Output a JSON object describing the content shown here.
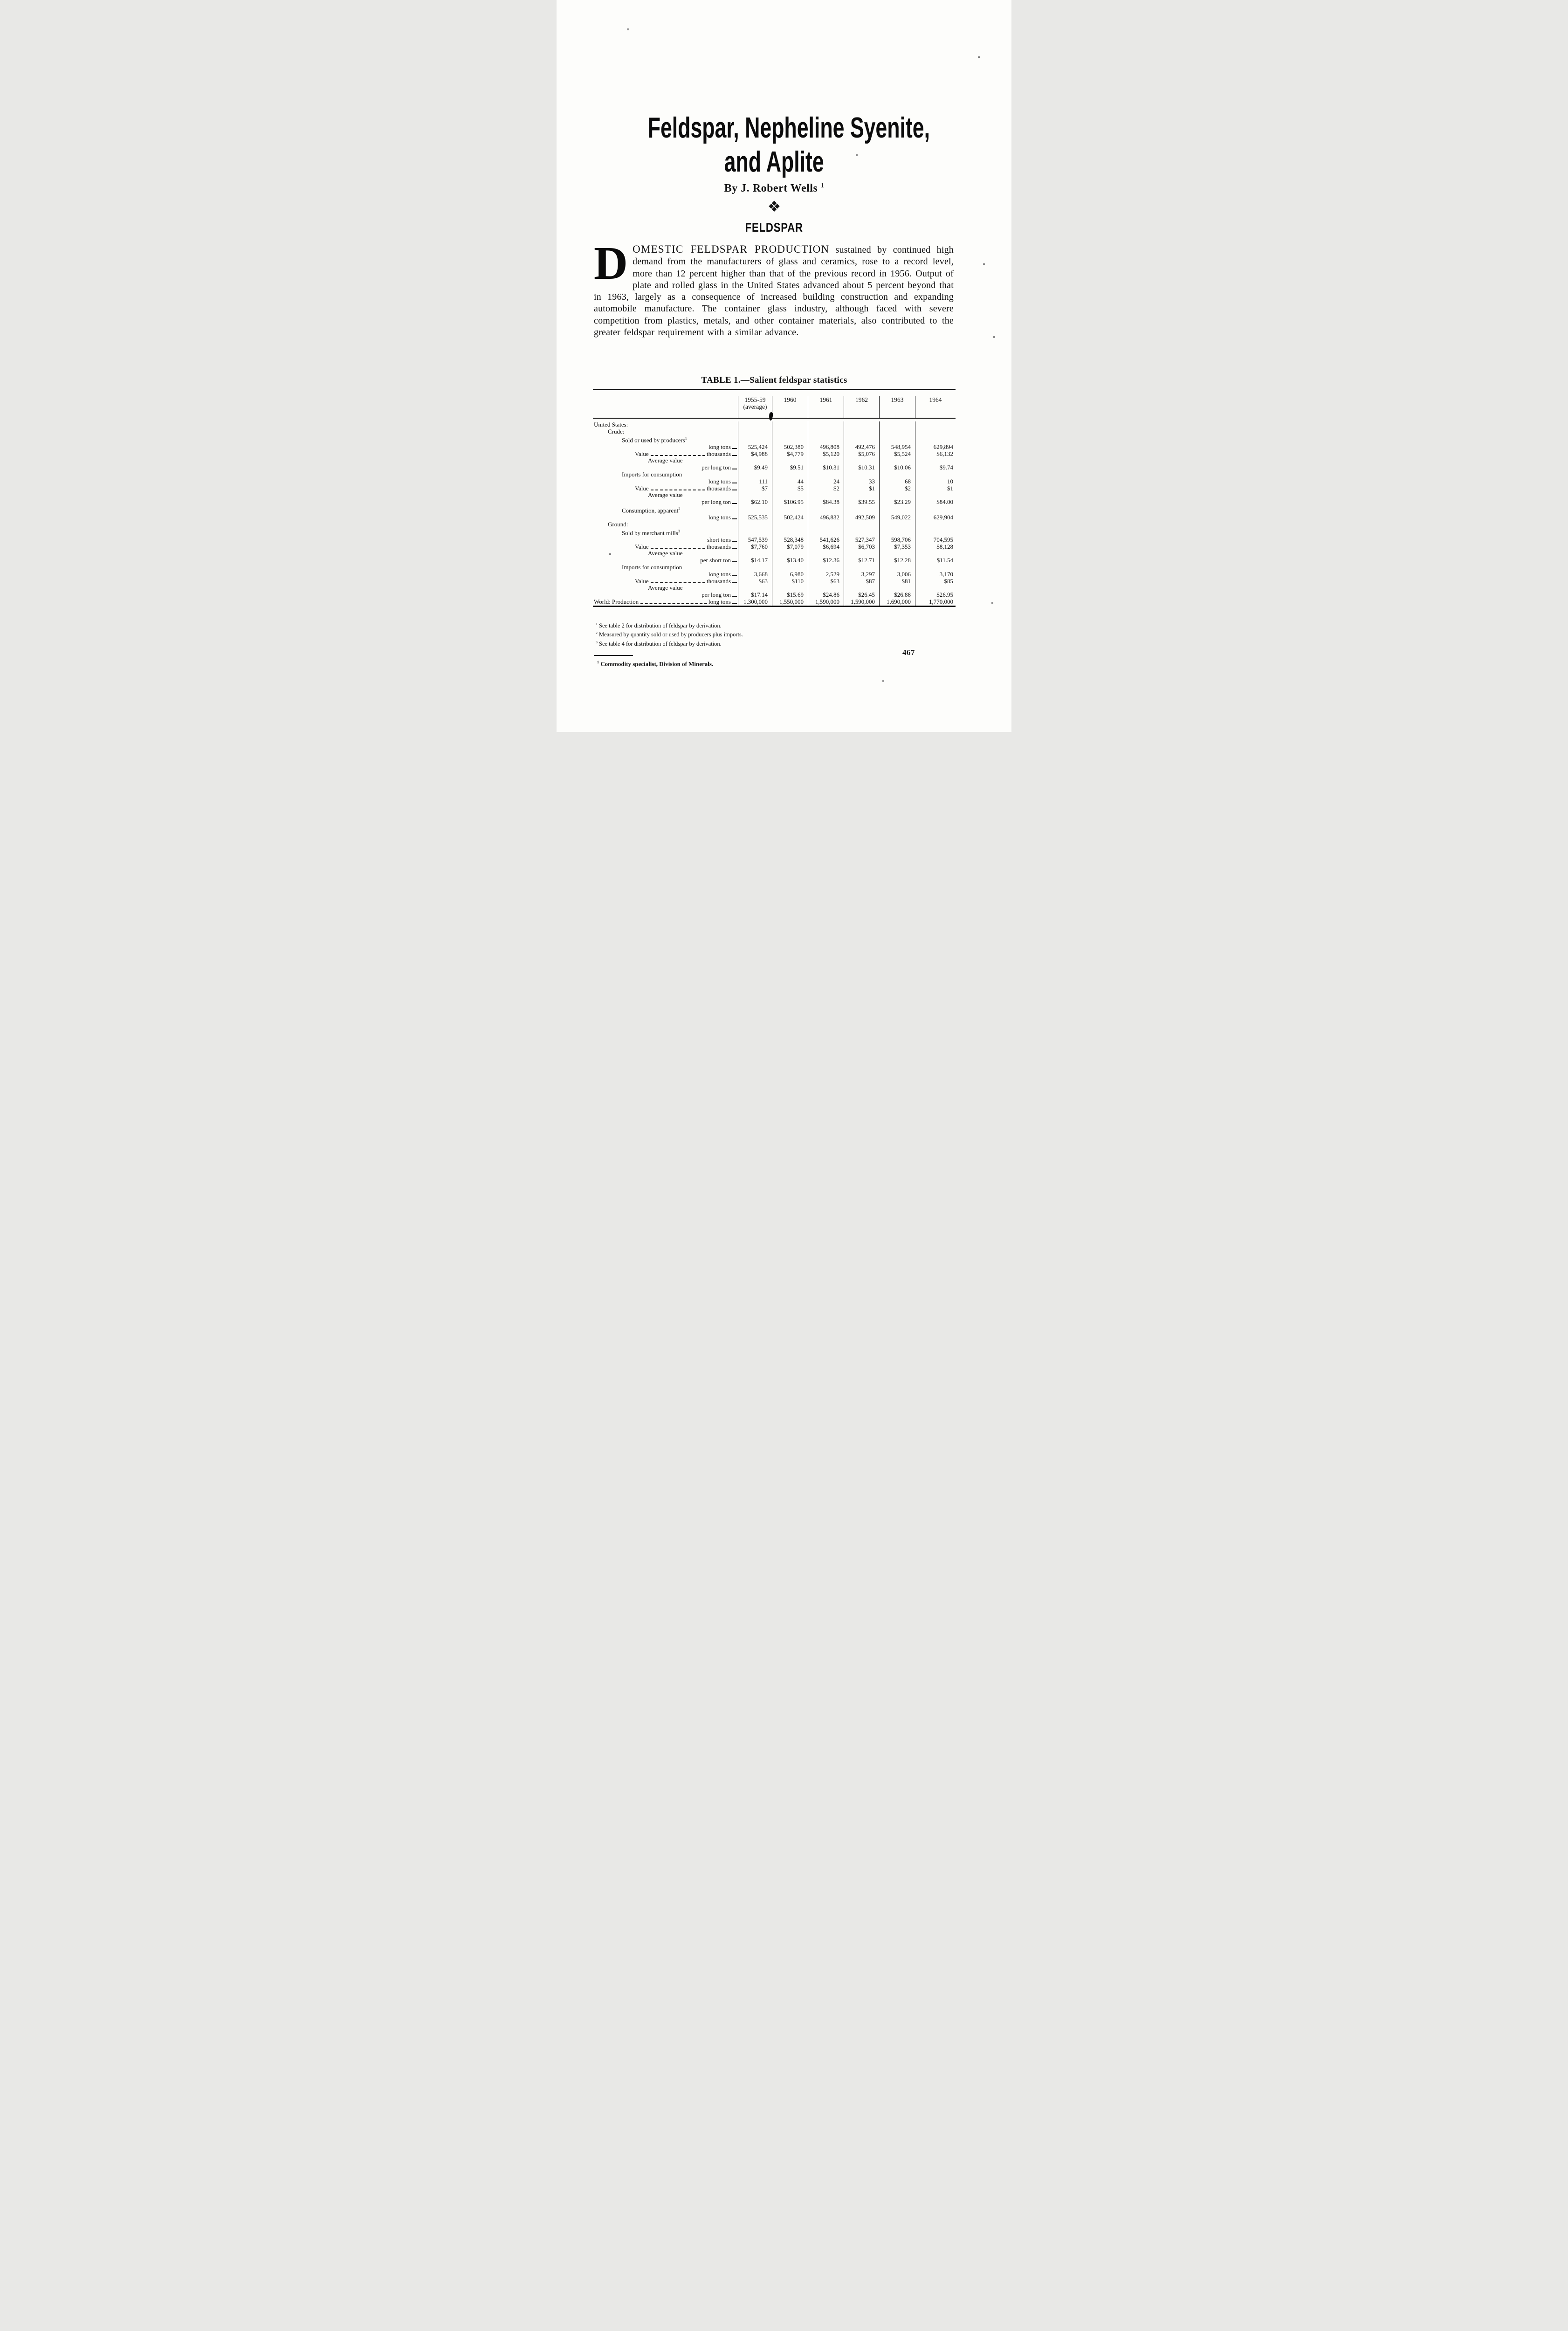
{
  "page": {
    "number": "467"
  },
  "title": {
    "line1": "Feldspar, Nepheline Syenite,",
    "line2": "and Aplite"
  },
  "byline": {
    "prefix": "By J. Robert Wells",
    "sup": "1"
  },
  "ornament": "❖",
  "section_heading": "FELDSPAR",
  "intro": {
    "drop_cap": "D",
    "lead": "OMESTIC FELDSPAR PRODUCTION",
    "text": " sustained by continued high demand from the manufacturers of glass and ceramics, rose to a record level, more than 12 percent higher than that of the previous record in 1956. Output of plate and rolled glass in the United States advanced about 5 percent beyond that in 1963, largely as a consequence of increased building construction and expanding automobile manufacture. The container glass industry, although faced with severe competition from plastics, metals, and other container materials, also contributed to the greater feldspar requirement with a similar advance."
  },
  "table": {
    "title": "TABLE 1.—Salient feldspar statistics",
    "years": [
      {
        "line1": "1955-59",
        "line2": "(average)"
      },
      {
        "line1": "1960",
        "line2": ""
      },
      {
        "line1": "1961",
        "line2": ""
      },
      {
        "line1": "1962",
        "line2": ""
      },
      {
        "line1": "1963",
        "line2": ""
      },
      {
        "line1": "1964",
        "line2": ""
      }
    ],
    "rows": [
      {
        "label": "United States:",
        "indent": 0
      },
      {
        "label": "Crude:",
        "indent": 1
      },
      {
        "label": "Sold or used by producers",
        "sup": "1",
        "indent": 2
      },
      {
        "unit": "long tons",
        "values": [
          "525,424",
          "502,380",
          "496,808",
          "492,476",
          "548,954",
          "629,894"
        ]
      },
      {
        "label": "Value",
        "leader": true,
        "unit": "thousands",
        "indent": 3,
        "values": [
          "$4,988",
          "$4,779",
          "$5,120",
          "$5,076",
          "$5,524",
          "$6,132"
        ]
      },
      {
        "label": "Average value",
        "indent": 4
      },
      {
        "unit": "per long ton",
        "values": [
          "$9.49",
          "$9.51",
          "$10.31",
          "$10.31",
          "$10.06",
          "$9.74"
        ]
      },
      {
        "label": "Imports for consumption",
        "indent": 2
      },
      {
        "unit": "long tons",
        "values": [
          "111",
          "44",
          "24",
          "33",
          "68",
          "10"
        ]
      },
      {
        "label": "Value",
        "leader": true,
        "unit": "thousands",
        "indent": 3,
        "values": [
          "$7",
          "$5",
          "$2",
          "$1",
          "$2",
          "$1"
        ]
      },
      {
        "label": "Average value",
        "indent": 4
      },
      {
        "unit": "per long ton",
        "values": [
          "$62.10",
          "$106.95",
          "$84.38",
          "$39.55",
          "$23.29",
          "$84.00"
        ]
      },
      {
        "label": "Consumption, apparent",
        "sup": "2",
        "indent": 2
      },
      {
        "unit": "long tons",
        "values": [
          "525,535",
          "502,424",
          "496,832",
          "492,509",
          "549,022",
          "629,904"
        ]
      },
      {
        "label": "Ground:",
        "indent": 1
      },
      {
        "label": "Sold by merchant mills",
        "sup": "3",
        "indent": 2
      },
      {
        "unit": "short tons",
        "values": [
          "547,539",
          "528,348",
          "541,626",
          "527,347",
          "598,706",
          "704,595"
        ]
      },
      {
        "label": "Value",
        "leader": true,
        "unit": "thousands",
        "indent": 3,
        "values": [
          "$7,760",
          "$7,079",
          "$6,694",
          "$6,703",
          "$7,353",
          "$8,128"
        ]
      },
      {
        "label": "Average value",
        "indent": 4
      },
      {
        "unit": "per short ton",
        "values": [
          "$14.17",
          "$13.40",
          "$12.36",
          "$12.71",
          "$12.28",
          "$11.54"
        ]
      },
      {
        "label": "Imports for consumption",
        "indent": 2
      },
      {
        "unit": "long tons",
        "values": [
          "3,668",
          "6,980",
          "2,529",
          "3,297",
          "3,006",
          "3,170"
        ]
      },
      {
        "label": "Value",
        "leader": true,
        "unit": "thousands",
        "indent": 3,
        "values": [
          "$63",
          "$110",
          "$63",
          "$87",
          "$81",
          "$85"
        ]
      },
      {
        "label": "Average value",
        "indent": 4
      },
      {
        "unit": "per long ton",
        "values": [
          "$17.14",
          "$15.69",
          "$24.86",
          "$26.45",
          "$26.88",
          "$26.95"
        ]
      },
      {
        "label": "World: Production",
        "leader": true,
        "unit": "long tons",
        "indent": 0,
        "values": [
          "1,300,000",
          "1,550,000",
          "1,590,000",
          "1,590,000",
          "1,690,000",
          "1,770,000"
        ]
      }
    ]
  },
  "table_footnotes": [
    {
      "sup": "1",
      "text": "See table 2 for distribution of feldspar by derivation."
    },
    {
      "sup": "2",
      "text": "Measured by quantity sold or used by producers plus imports."
    },
    {
      "sup": "3",
      "text": "See table 4 for distribution of feldspar by derivation."
    }
  ],
  "author_footnote": {
    "sup": "1",
    "text": "Commodity specialist, Division of Minerals."
  }
}
